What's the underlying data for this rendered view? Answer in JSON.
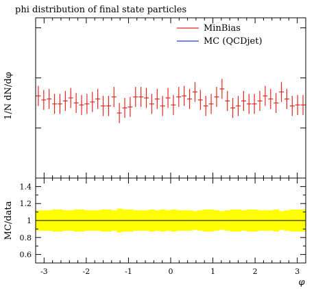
{
  "chart_data": [
    {
      "type": "scatter",
      "title": "phi distribution of final state particles",
      "ylabel": "1/N dN/dφ",
      "xlim": [
        -3.2,
        3.2
      ],
      "ylim": [
        0.0,
        1.6
      ],
      "legend": {
        "placement": "top-right",
        "entries": [
          "MinBias",
          "MC (QCDjet)"
        ]
      },
      "series": [
        {
          "name": "MinBias",
          "color": "#e8231e",
          "bins": 50,
          "values": [
            0.82,
            0.78,
            0.79,
            0.74,
            0.74,
            0.77,
            0.8,
            0.75,
            0.73,
            0.74,
            0.76,
            0.79,
            0.72,
            0.72,
            0.81,
            0.65,
            0.7,
            0.71,
            0.81,
            0.81,
            0.8,
            0.74,
            0.79,
            0.72,
            0.8,
            0.73,
            0.81,
            0.82,
            0.79,
            0.86,
            0.78,
            0.72,
            0.74,
            0.81,
            0.89,
            0.77,
            0.7,
            0.72,
            0.77,
            0.74,
            0.74,
            0.77,
            0.82,
            0.79,
            0.75,
            0.86,
            0.79,
            0.72,
            0.73,
            0.73
          ],
          "errors": [
            0.1,
            0.1,
            0.1,
            0.1,
            0.1,
            0.1,
            0.1,
            0.1,
            0.1,
            0.1,
            0.1,
            0.1,
            0.1,
            0.1,
            0.1,
            0.1,
            0.1,
            0.1,
            0.1,
            0.1,
            0.1,
            0.1,
            0.1,
            0.1,
            0.1,
            0.1,
            0.1,
            0.1,
            0.1,
            0.1,
            0.1,
            0.1,
            0.1,
            0.1,
            0.1,
            0.1,
            0.1,
            0.1,
            0.1,
            0.1,
            0.1,
            0.1,
            0.1,
            0.1,
            0.1,
            0.1,
            0.1,
            0.1,
            0.1,
            0.1
          ]
        },
        {
          "name": "MC (QCDjet)",
          "color": "#1a3cf0",
          "values": []
        }
      ]
    },
    {
      "type": "line",
      "xlabel": "φ",
      "ylabel": "MC/data",
      "xlim": [
        -3.2,
        3.2
      ],
      "ylim": [
        0.5,
        1.5
      ],
      "x_ticks": [
        -3,
        -2,
        -1,
        0,
        1,
        2,
        3
      ],
      "x_tick_labels": [
        "-3",
        "-2",
        "-1",
        "0",
        "1",
        "2",
        "3"
      ],
      "y_ticks": [
        0.6,
        0.8,
        1.0,
        1.2,
        1.4
      ],
      "y_tick_labels": [
        "0.6",
        "0.8",
        "1",
        "1.2",
        "1.4"
      ],
      "reference_line": 1.0,
      "band": {
        "color": "#ffff00",
        "half_widths": [
          0.12,
          0.12,
          0.12,
          0.13,
          0.13,
          0.12,
          0.12,
          0.13,
          0.13,
          0.12,
          0.12,
          0.12,
          0.13,
          0.13,
          0.12,
          0.14,
          0.13,
          0.13,
          0.12,
          0.12,
          0.12,
          0.13,
          0.12,
          0.13,
          0.12,
          0.13,
          0.12,
          0.12,
          0.12,
          0.11,
          0.12,
          0.13,
          0.13,
          0.12,
          0.11,
          0.12,
          0.13,
          0.13,
          0.12,
          0.13,
          0.13,
          0.12,
          0.12,
          0.12,
          0.13,
          0.11,
          0.12,
          0.13,
          0.13,
          0.13
        ]
      }
    }
  ]
}
